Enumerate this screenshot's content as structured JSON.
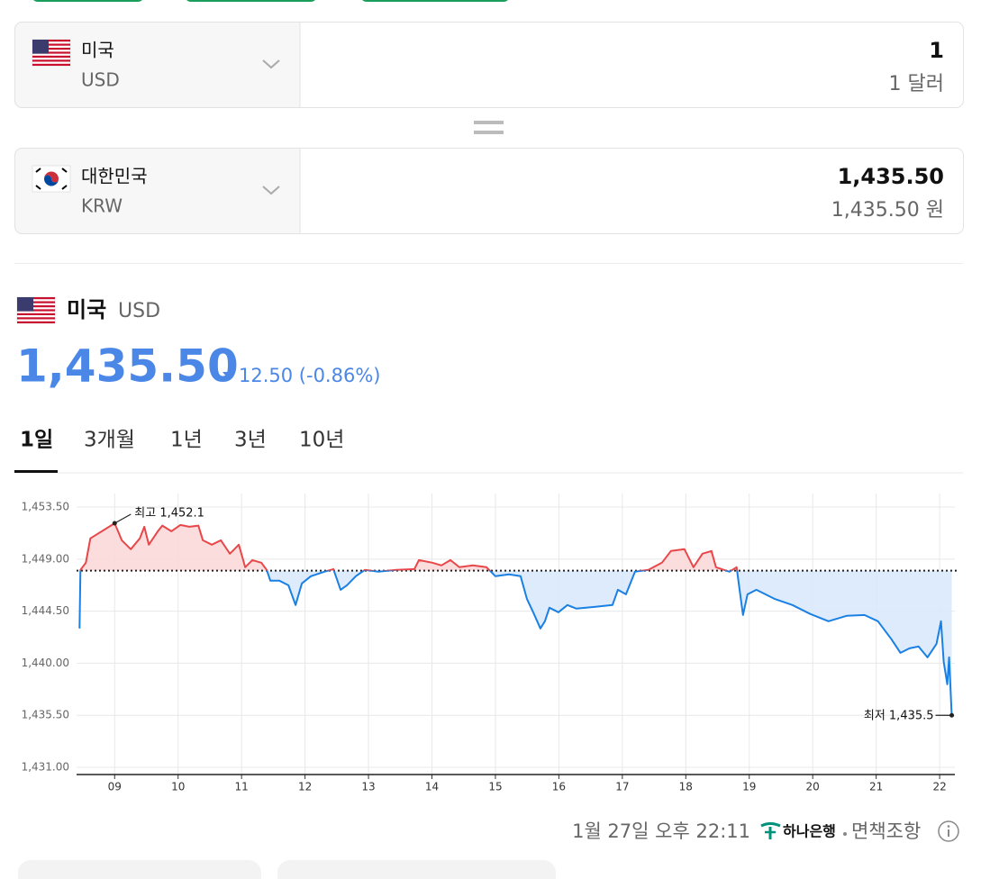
{
  "converter": {
    "from": {
      "country": "미국",
      "code": "USD",
      "amount": "1",
      "amount_text": "1 달러"
    },
    "to": {
      "country": "대한민국",
      "code": "KRW",
      "amount": "1,435.50",
      "amount_text": "1,435.50 원"
    }
  },
  "quote": {
    "country": "미국",
    "code": "USD",
    "price": "1,435.50",
    "change": "12.50 (-0.86%)"
  },
  "tabs": [
    "1일",
    "3개월",
    "1년",
    "3년",
    "10년"
  ],
  "chart_data": {
    "type": "line",
    "x": [
      8.447,
      8.461,
      8.546,
      8.617,
      9.0,
      9.113,
      9.255,
      9.397,
      9.468,
      9.539,
      9.681,
      9.752,
      9.894,
      10.035,
      10.177,
      10.319,
      10.39,
      10.532,
      10.674,
      10.816,
      10.957,
      11.057,
      11.17,
      11.312,
      11.397,
      11.454,
      11.596,
      11.738,
      11.851,
      11.95,
      12.092,
      12.305,
      12.447,
      12.56,
      12.66,
      12.801,
      12.943,
      13.156,
      13.44,
      13.723,
      13.794,
      14.007,
      14.149,
      14.291,
      14.433,
      14.645,
      14.858,
      15.0,
      15.213,
      15.397,
      15.496,
      15.596,
      15.709,
      15.78,
      15.851,
      15.993,
      16.135,
      16.277,
      16.56,
      16.844,
      16.929,
      17.057,
      17.199,
      17.411,
      17.624,
      17.766,
      17.979,
      18.121,
      18.262,
      18.404,
      18.475,
      18.688,
      18.801,
      18.858,
      18.901,
      18.972,
      19.113,
      19.397,
      19.681,
      19.965,
      20.248,
      20.532,
      20.816,
      21.028,
      21.241,
      21.383,
      21.525,
      21.667,
      21.809,
      21.95,
      22.021,
      22.064,
      22.121,
      22.149,
      22.191
    ],
    "values": [
      1443.01,
      1448.07,
      1448.69,
      1450.79,
      1452.1,
      1450.63,
      1449.86,
      1450.79,
      1451.8,
      1450.25,
      1451.41,
      1451.9,
      1451.41,
      1451.95,
      1451.8,
      1451.9,
      1450.63,
      1450.25,
      1450.63,
      1449.47,
      1450.25,
      1448.3,
      1448.92,
      1448.69,
      1448.07,
      1447.13,
      1447.13,
      1446.74,
      1445.03,
      1446.9,
      1447.52,
      1447.91,
      1448.14,
      1446.35,
      1446.74,
      1447.52,
      1448.07,
      1447.91,
      1448.07,
      1448.14,
      1448.92,
      1448.69,
      1448.46,
      1448.92,
      1448.3,
      1448.46,
      1448.3,
      1447.52,
      1447.68,
      1447.52,
      1445.57,
      1444.41,
      1443.01,
      1443.63,
      1444.8,
      1444.41,
      1445.03,
      1444.72,
      1444.87,
      1445.03,
      1446.35,
      1445.96,
      1447.91,
      1448.07,
      1448.69,
      1449.7,
      1449.86,
      1448.3,
      1449.47,
      1449.7,
      1448.3,
      1447.91,
      1448.3,
      1445.96,
      1444.17,
      1445.96,
      1446.35,
      1445.57,
      1445.03,
      1444.25,
      1443.63,
      1444.1,
      1444.17,
      1443.63,
      1442.07,
      1440.9,
      1441.29,
      1441.45,
      1440.51,
      1441.68,
      1443.63,
      1440.12,
      1438.18,
      1440.51,
      1435.5
    ],
    "baseline": 1448.0,
    "up_color": "#e8474a",
    "down_color": "#1a80e3",
    "up_fill": "#fbd9d9",
    "down_fill": "#d9e9fb",
    "xlim": [
      8.4,
      22.24
    ],
    "xticks": [
      {
        "value": 9,
        "label": "09"
      },
      10,
      11,
      12,
      13,
      14,
      15,
      16,
      17,
      18,
      19,
      20,
      21,
      22
    ],
    "ylim": [
      1430.38,
      1454.67
    ],
    "yticks": [
      {
        "value": 1431,
        "label": "1,431.00"
      },
      {
        "value": 1435.5,
        "label": "1,435.50"
      },
      {
        "value": 1440,
        "label": "1,440.00"
      },
      {
        "value": 1444.5,
        "label": "1,444.50"
      },
      {
        "value": 1449,
        "label": "1,449.00"
      },
      {
        "value": 1453.5,
        "label": "1,453.50"
      }
    ],
    "grid": true,
    "annotations": [
      {
        "text": "최고 1,452.1",
        "x": 9.0,
        "value": 1452.1,
        "side": "right"
      },
      {
        "text": "최저 1,435.5",
        "x": 22.191,
        "value": 1435.5,
        "side": "left"
      }
    ]
  },
  "footer": {
    "time": "1월 27일 오후 22:11",
    "provider": "하나은행",
    "disclaimer": "면책조항"
  }
}
